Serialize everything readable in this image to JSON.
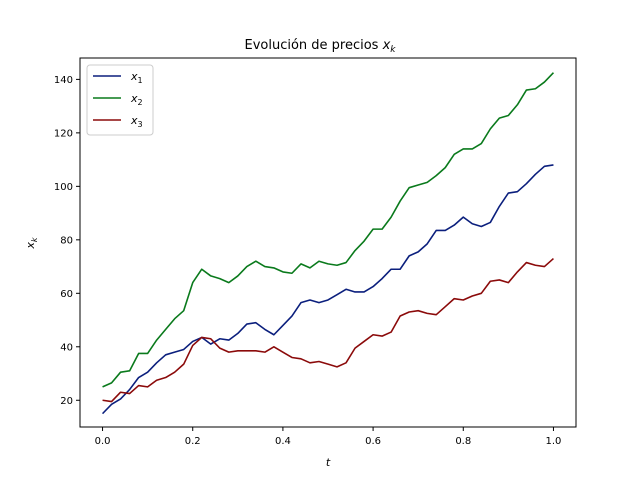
{
  "chart_data": {
    "type": "line",
    "title": "Evolución de precios x_k",
    "title_plain": "Evolución de precios ",
    "title_var": "x",
    "title_sub": "k",
    "xlabel": "t",
    "ylabel_var": "x",
    "ylabel_sub": "k",
    "xlim": [
      -0.05,
      1.05
    ],
    "ylim": [
      10,
      148
    ],
    "xticks": [
      "0.0",
      "0.2",
      "0.4",
      "0.6",
      "0.8",
      "1.0"
    ],
    "xtick_values": [
      0.0,
      0.2,
      0.4,
      0.6,
      0.8,
      1.0
    ],
    "yticks": [
      "20",
      "40",
      "60",
      "80",
      "100",
      "120",
      "140"
    ],
    "ytick_values": [
      20,
      40,
      60,
      80,
      100,
      120,
      140
    ],
    "grid": false,
    "legend_position": "top-left",
    "x": [
      0.0,
      0.02,
      0.04,
      0.06,
      0.08,
      0.1,
      0.12,
      0.14,
      0.16,
      0.18,
      0.2,
      0.22,
      0.24,
      0.26,
      0.28,
      0.3,
      0.32,
      0.34,
      0.36,
      0.38,
      0.4,
      0.42,
      0.44,
      0.46,
      0.48,
      0.5,
      0.52,
      0.54,
      0.56,
      0.58,
      0.6,
      0.62,
      0.64,
      0.66,
      0.68,
      0.7,
      0.72,
      0.74,
      0.76,
      0.78,
      0.8,
      0.82,
      0.84,
      0.86,
      0.88,
      0.9,
      0.92,
      0.94,
      0.96,
      0.98,
      1.0
    ],
    "series": [
      {
        "name": "x_1",
        "label_var": "x",
        "label_sub": "1",
        "color": "#0b1f7d",
        "values": [
          15,
          18.5,
          20.5,
          24,
          28.5,
          30.5,
          34,
          37,
          38,
          39,
          42,
          43.5,
          41,
          43,
          42.5,
          45,
          48.5,
          49,
          46.5,
          44.5,
          48,
          51.5,
          56.5,
          57.5,
          56.5,
          57.5,
          59.5,
          61.5,
          60.5,
          60.5,
          62.5,
          65.5,
          69,
          69,
          74,
          75.5,
          78.5,
          83.5,
          83.5,
          85.5,
          88.5,
          86,
          85,
          86.5,
          92.5,
          97.5,
          98,
          101,
          104.5,
          107.5,
          108
        ]
      },
      {
        "name": "x_2",
        "label_var": "x",
        "label_sub": "2",
        "color": "#0a7a1c",
        "values": [
          25,
          26.5,
          30.5,
          31,
          37.5,
          37.5,
          42.5,
          46.5,
          50.5,
          53.5,
          64,
          69,
          66.5,
          65.5,
          64,
          66.5,
          70,
          72,
          70,
          69.5,
          68,
          67.5,
          71,
          69.5,
          72,
          71,
          70.5,
          71.5,
          76,
          79.5,
          84,
          84,
          88.5,
          94.5,
          99.5,
          100.5,
          101.5,
          104,
          107,
          112,
          114,
          114,
          116,
          121.5,
          125.5,
          126.5,
          130.5,
          136,
          136.5,
          139,
          142.5
        ]
      },
      {
        "name": "x_3",
        "label_var": "x",
        "label_sub": "3",
        "color": "#8b0a0a",
        "values": [
          20,
          19.5,
          23,
          22.5,
          25.5,
          25,
          27.5,
          28.5,
          30.5,
          33.5,
          40.5,
          43.5,
          43,
          39.5,
          38,
          38.5,
          38.5,
          38.5,
          38,
          40,
          38,
          36,
          35.5,
          34,
          34.5,
          33.5,
          32.5,
          34,
          39.5,
          42,
          44.5,
          44,
          45.5,
          51.5,
          53,
          53.5,
          52.5,
          52,
          55,
          58,
          57.5,
          59,
          60,
          64.5,
          65,
          64,
          68,
          71.5,
          70.5,
          70,
          73
        ]
      }
    ]
  }
}
